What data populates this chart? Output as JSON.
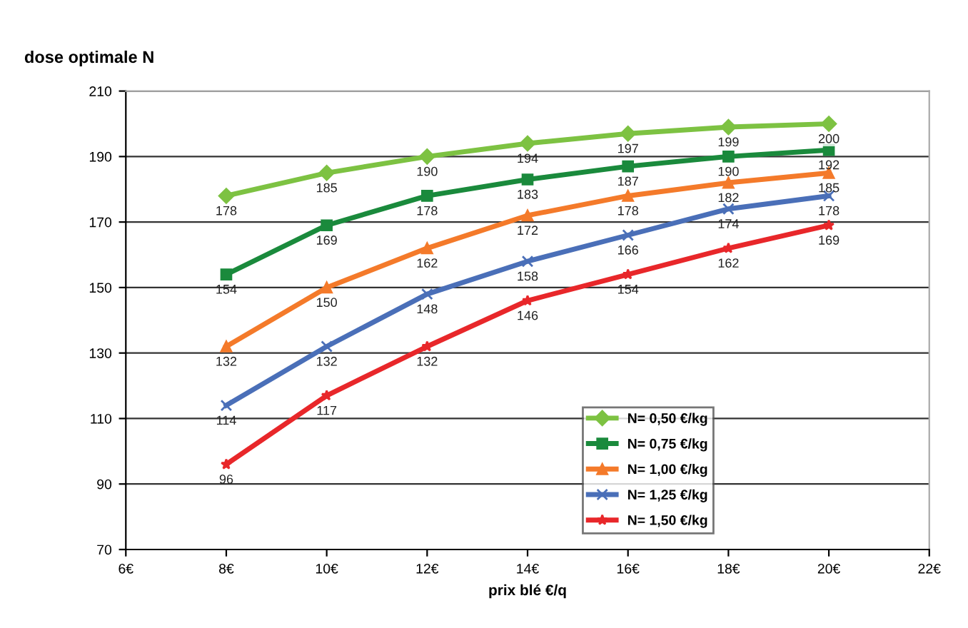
{
  "chart_data": {
    "type": "line",
    "ylabel": "dose optimale N",
    "xlabel": "prix blé €/q",
    "x": [
      8,
      10,
      12,
      14,
      16,
      18,
      20
    ],
    "xlim": [
      6,
      22
    ],
    "xticks": [
      {
        "value": 6,
        "label": "6€"
      },
      {
        "value": 8,
        "label": "8€"
      },
      {
        "value": 10,
        "label": "10€"
      },
      {
        "value": 12,
        "label": "12€"
      },
      {
        "value": 14,
        "label": "14€"
      },
      {
        "value": 16,
        "label": "16€"
      },
      {
        "value": 18,
        "label": "18€"
      },
      {
        "value": 20,
        "label": "20€"
      },
      {
        "value": 22,
        "label": "22€"
      }
    ],
    "ylim": [
      70,
      210
    ],
    "yticks": [
      70,
      90,
      110,
      130,
      150,
      170,
      190,
      210
    ],
    "grid": "y",
    "legend": "bottom right",
    "data_labels": true,
    "series": [
      {
        "name": "N= 0,50 €/kg",
        "color": "#7dc242",
        "marker": "diamond",
        "values": [
          178,
          185,
          190,
          194,
          197,
          199,
          200
        ]
      },
      {
        "name": "N= 0,75 €/kg",
        "color": "#1a8a3c",
        "marker": "square",
        "values": [
          154,
          169,
          178,
          183,
          187,
          190,
          192
        ]
      },
      {
        "name": "N= 1,00 €/kg",
        "color": "#f47a2a",
        "marker": "triangle",
        "values": [
          132,
          150,
          162,
          172,
          178,
          182,
          185
        ]
      },
      {
        "name": "N= 1,25 €/kg",
        "color": "#4a6fb8",
        "marker": "cross",
        "values": [
          114,
          132,
          148,
          158,
          166,
          174,
          178
        ]
      },
      {
        "name": "N= 1,50 €/kg",
        "color": "#e8272a",
        "marker": "star",
        "values": [
          96,
          117,
          132,
          146,
          154,
          162,
          169
        ]
      }
    ]
  }
}
